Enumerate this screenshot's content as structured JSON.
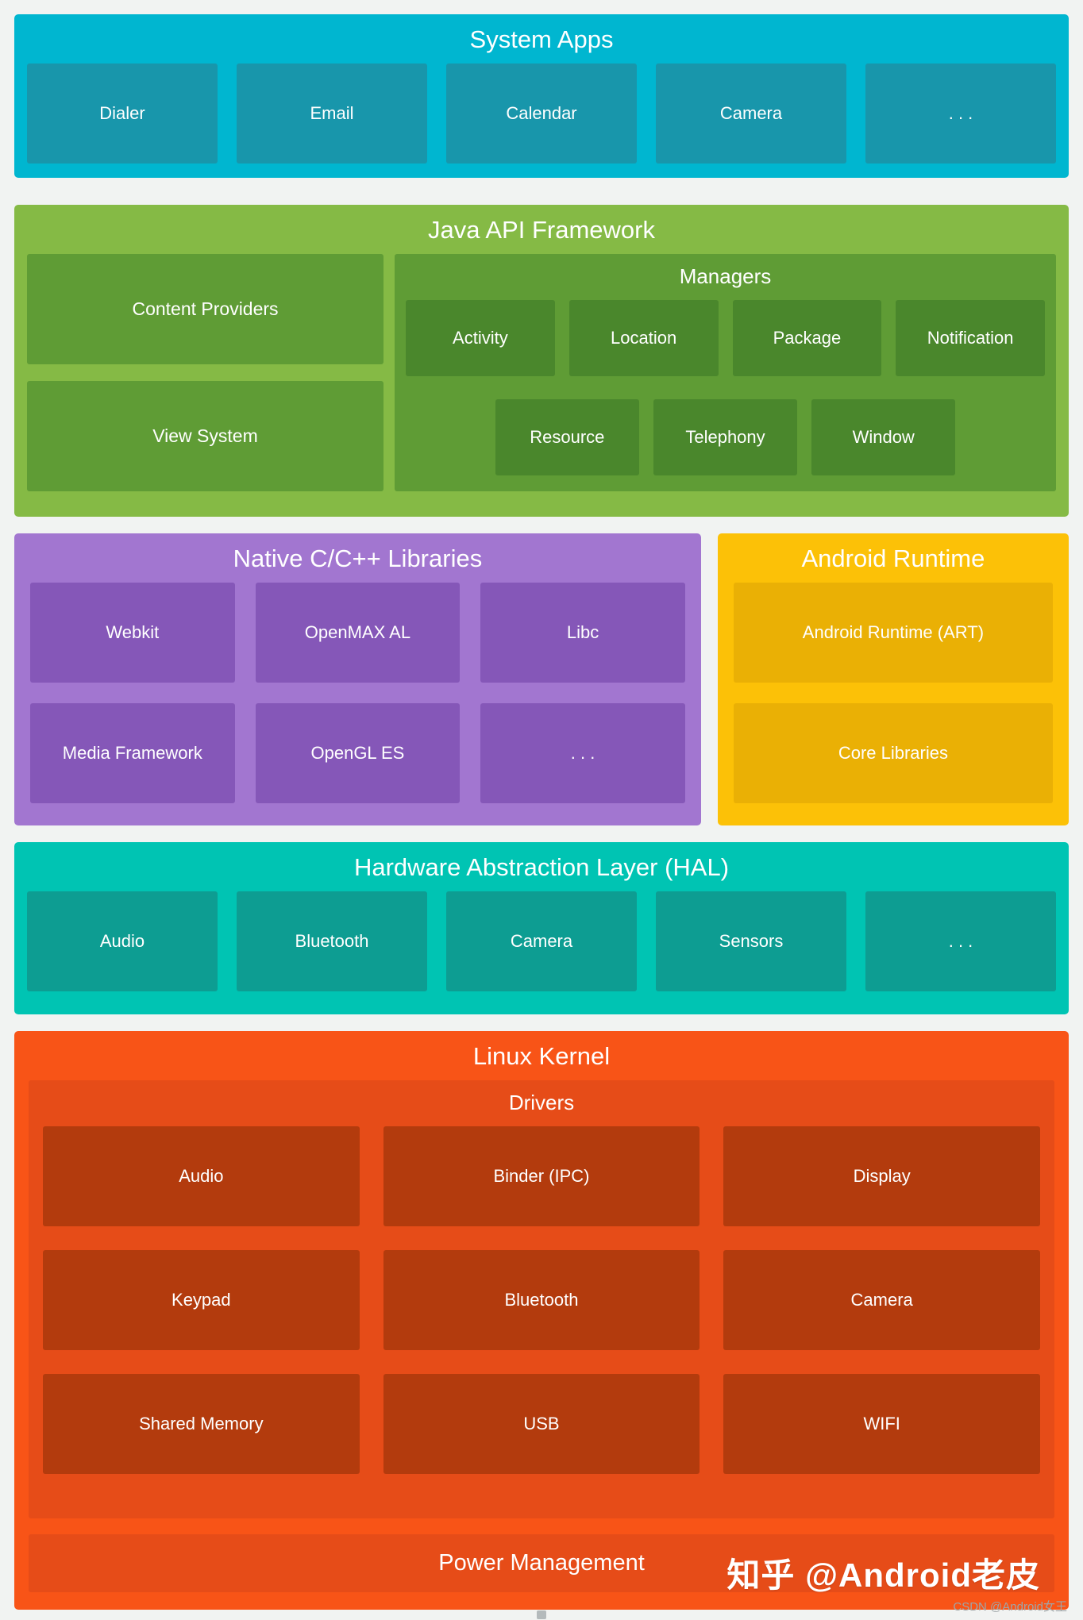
{
  "layers": {
    "system_apps": {
      "title": "System Apps",
      "items": [
        "Dialer",
        "Email",
        "Calendar",
        "Camera",
        ". . ."
      ]
    },
    "java_api": {
      "title": "Java API Framework",
      "left_items": [
        "Content Providers",
        "View System"
      ],
      "managers": {
        "title": "Managers",
        "row1": [
          "Activity",
          "Location",
          "Package",
          "Notification"
        ],
        "row2": [
          "Resource",
          "Telephony",
          "Window"
        ]
      }
    },
    "native_libs": {
      "title": "Native C/C++ Libraries",
      "items": [
        "Webkit",
        "OpenMAX AL",
        "Libc",
        "Media Framework",
        "OpenGL ES",
        ". . ."
      ]
    },
    "android_runtime": {
      "title": "Android Runtime",
      "items": [
        "Android Runtime (ART)",
        "Core Libraries"
      ]
    },
    "hal": {
      "title": "Hardware Abstraction Layer (HAL)",
      "items": [
        "Audio",
        "Bluetooth",
        "Camera",
        "Sensors",
        ". . ."
      ]
    },
    "linux_kernel": {
      "title": "Linux Kernel",
      "drivers": {
        "title": "Drivers",
        "items": [
          "Audio",
          "Binder (IPC)",
          "Display",
          "Keypad",
          "Bluetooth",
          "Camera",
          "Shared Memory",
          "USB",
          "WIFI"
        ]
      },
      "power": "Power Management"
    }
  },
  "watermarks": {
    "zhihu": "知乎 @Android老皮",
    "csdn": "CSDN @Android女王"
  },
  "colors": {
    "page_bg": "#f1f3f2",
    "sysapps_bg": "#00b6d0",
    "sysapps_cell": "#1896ab",
    "java_bg": "#85ba45",
    "java_cell": "#5f9c35",
    "java_inner_cell": "#4a872c",
    "native_bg": "#a276d0",
    "native_cell": "#8557b8",
    "art_bg": "#fcc107",
    "art_cell": "#eab005",
    "hal_bg": "#00c4b3",
    "hal_cell": "#0d9d92",
    "kernel_bg": "#f85417",
    "kernel_inner": "#e64c18",
    "kernel_cell": "#b33b0d",
    "csdn_color": "#9fa6a9"
  }
}
